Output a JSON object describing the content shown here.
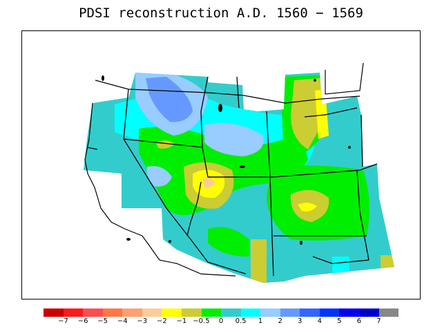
{
  "title": "PDSI reconstruction A.D. 1560 − 1569",
  "legend": {
    "colors": [
      "#cc0000",
      "#ff1a1a",
      "#ff4d4d",
      "#ff7744",
      "#ffa070",
      "#ffcc99",
      "#ffff00",
      "#cccc33",
      "#00ee00",
      "#33cccc",
      "#00ffff",
      "#99ccff",
      "#6699ff",
      "#3366ff",
      "#0033ff",
      "#0000ee",
      "#0000cc",
      "#888888"
    ],
    "labels": [
      "−7",
      "−6",
      "−5",
      "−4",
      "−3",
      "−2",
      "−1",
      "−0.5",
      "0",
      "0.5",
      "1",
      "2",
      "3",
      "4",
      "5",
      "6",
      "7"
    ]
  }
}
